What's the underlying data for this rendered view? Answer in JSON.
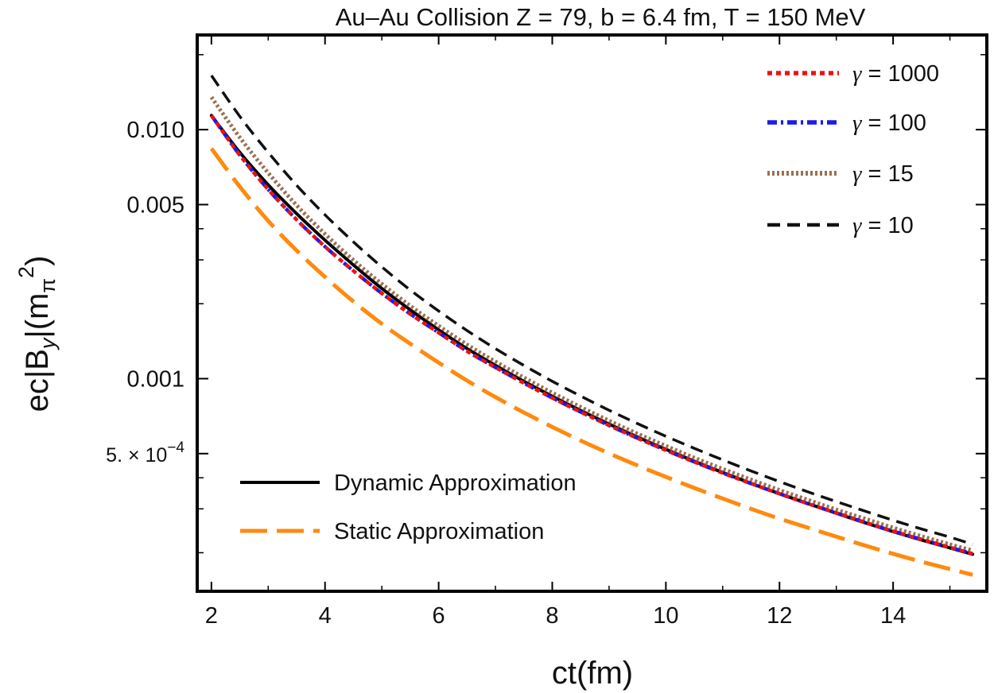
{
  "chart_data": {
    "type": "line",
    "title": "Au–Au Collision Z = 79, b = 6.4 fm, T = 150 MeV",
    "xlabel": "ct(fm)",
    "ylabel": {
      "prefix": "ec|B",
      "sub1": "y",
      "mid": "|(m",
      "sub2": "π",
      "sup": "2",
      "suffix": ")"
    },
    "xlim": [
      1.75,
      15.65
    ],
    "ylim": [
      0.00014,
      0.024
    ],
    "yscale": "log",
    "x_ticks": [
      2,
      4,
      6,
      8,
      10,
      12,
      14
    ],
    "x_tick_labels": [
      "2",
      "4",
      "6",
      "8",
      "10",
      "12",
      "14"
    ],
    "y_major_ticks": [
      0.0005,
      0.001,
      0.005,
      0.01
    ],
    "y_tick_labels": [
      {
        "mantissa": "5. × 10",
        "exp": "−4",
        "value": 0.0005
      },
      {
        "text": "0.001",
        "value": 0.001
      },
      {
        "text": "0.005",
        "value": 0.005
      },
      {
        "text": "0.010",
        "value": 0.01
      }
    ],
    "y_minor_ticks": [
      0.0002,
      0.0003,
      0.0004,
      0.002,
      0.003,
      0.004,
      0.02
    ],
    "grid": false,
    "legend_position": "top-right",
    "bottom_legend_position": "lower-left",
    "x": [
      2,
      2.5,
      3,
      3.5,
      4,
      4.5,
      5,
      5.5,
      6,
      6.5,
      7,
      7.5,
      8,
      8.5,
      9,
      9.5,
      10,
      10.5,
      11,
      11.5,
      12,
      12.5,
      13,
      13.5,
      14,
      14.5,
      15,
      15.4
    ],
    "series": [
      {
        "name": "γ = 1000",
        "gamma_value": "1000",
        "color": "#ee1111",
        "style": "dotted-red",
        "legend_group": "top",
        "values": [
          0.0114,
          0.0079,
          0.00575,
          0.00435,
          0.00339,
          0.00271,
          0.0022,
          0.00182,
          0.00153,
          0.00129,
          0.00111,
          0.00096,
          0.000837,
          0.000735,
          0.000649,
          0.000577,
          0.000516,
          0.000463,
          0.000418,
          0.000379,
          0.000345,
          0.000315,
          0.000289,
          0.000265,
          0.000244,
          0.000226,
          0.00021,
          0.000198
        ]
      },
      {
        "name": "γ = 100",
        "gamma_value": "100",
        "color": "#1a1aee",
        "style": "dashdot-blue",
        "legend_group": "top",
        "values": [
          0.0114,
          0.0079,
          0.00575,
          0.00435,
          0.00339,
          0.00271,
          0.0022,
          0.00182,
          0.00153,
          0.00129,
          0.00111,
          0.00096,
          0.000837,
          0.000735,
          0.000649,
          0.000577,
          0.000516,
          0.000463,
          0.000418,
          0.000379,
          0.000345,
          0.000315,
          0.000289,
          0.000265,
          0.000244,
          0.000226,
          0.00021,
          0.000198
        ]
      },
      {
        "name": "γ = 15",
        "gamma_value": "15",
        "color": "#9a7050",
        "style": "dotted-brown",
        "legend_group": "top",
        "values": [
          0.0135,
          0.0093,
          0.0067,
          0.00497,
          0.00381,
          0.00299,
          0.0024,
          0.00196,
          0.00163,
          0.00137,
          0.00117,
          0.00101,
          0.000878,
          0.000769,
          0.000678,
          0.000601,
          0.000537,
          0.000481,
          0.000434,
          0.000393,
          0.000357,
          0.000326,
          0.000298,
          0.000274,
          0.000252,
          0.000233,
          0.000216,
          0.000204
        ]
      },
      {
        "name": "γ = 10",
        "gamma_value": "10",
        "color": "#111111",
        "style": "dashed-black",
        "legend_group": "top",
        "values": [
          0.0165,
          0.0113,
          0.0081,
          0.00598,
          0.00455,
          0.00354,
          0.00281,
          0.00227,
          0.00187,
          0.00156,
          0.00132,
          0.00113,
          0.000976,
          0.000851,
          0.000747,
          0.00066,
          0.000587,
          0.000525,
          0.000472,
          0.000426,
          0.000386,
          0.000351,
          0.000321,
          0.000294,
          0.00027,
          0.000249,
          0.000231,
          0.000216
        ]
      },
      {
        "name": "Dynamic Approximation",
        "color": "#000000",
        "style": "solid-black",
        "legend_group": "bottom",
        "values": [
          0.0114,
          0.0081,
          0.006,
          0.0046,
          0.0036,
          0.00286,
          0.0023,
          0.00189,
          0.00157,
          0.00132,
          0.00113,
          0.000975,
          0.00085,
          0.000745,
          0.000657,
          0.000583,
          0.00052,
          0.000466,
          0.00042,
          0.00038,
          0.000345,
          0.000315,
          0.000288,
          0.000264,
          0.000243,
          0.000225,
          0.000209,
          0.000197
        ]
      },
      {
        "name": "Static Approximation",
        "color": "#ff8a0e",
        "style": "longdash-orange",
        "legend_group": "bottom",
        "values": [
          0.0084,
          0.0059,
          0.0043,
          0.00327,
          0.00256,
          0.00204,
          0.00166,
          0.00138,
          0.00116,
          0.000982,
          0.000843,
          0.000731,
          0.00064,
          0.000564,
          0.000501,
          0.000448,
          0.000403,
          0.000364,
          0.00033,
          0.0003,
          0.000274,
          0.000252,
          0.000232,
          0.000214,
          0.000198,
          0.000184,
          0.000172,
          0.000163
        ]
      }
    ]
  }
}
